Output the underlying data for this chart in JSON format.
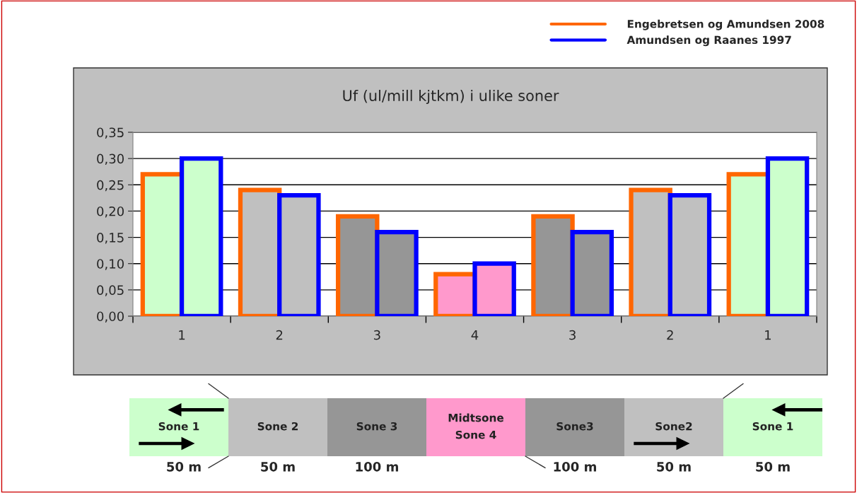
{
  "chart_data": [
    {
      "type": "bar",
      "title": "Uf (ul/mill kjtkm) i ulike soner",
      "categories": [
        "1",
        "2",
        "3",
        "4",
        "3",
        "2",
        "1"
      ],
      "series": [
        {
          "name": "Engebretsen og Amundsen 2008",
          "color": "#ff6600",
          "colors": [
            "#ccffcc",
            "#c0c0c0",
            "#969696",
            "#ff99cc",
            "#969696",
            "#c0c0c0",
            "#ccffcc"
          ],
          "values": [
            0.27,
            0.24,
            0.19,
            0.08,
            0.19,
            0.24,
            0.27
          ]
        },
        {
          "name": "Amundsen og Raanes 1997",
          "color": "#0000ff",
          "colors": [
            "#ccffcc",
            "#c0c0c0",
            "#969696",
            "#ff99cc",
            "#969696",
            "#c0c0c0",
            "#ccffcc"
          ],
          "values": [
            0.3,
            0.23,
            0.16,
            0.1,
            0.16,
            0.23,
            0.3
          ]
        }
      ],
      "ylim": [
        0,
        0.35
      ],
      "yticks": [
        {
          "value": 0,
          "label": "0,00"
        },
        {
          "value": 0.05,
          "label": "0,05"
        },
        {
          "value": 0.1,
          "label": "0,10"
        },
        {
          "value": 0.15,
          "label": "0,15"
        },
        {
          "value": 0.2,
          "label": "0,20"
        },
        {
          "value": 0.25,
          "label": "0,25"
        },
        {
          "value": 0.3,
          "label": "0,30"
        },
        {
          "value": 0.35,
          "label": "0,35"
        }
      ],
      "grid": "y",
      "legend": "top right"
    },
    {
      "type": "other",
      "categories": [
        "Sone 1",
        "Sone 2",
        "Sone 3",
        "Midtsone\nSone 4",
        "Sone3",
        "Sone2",
        "Sone 1"
      ],
      "colors": [
        "#ccffcc",
        "#c0c0c0",
        "#969696",
        "#ff99cc",
        "#969696",
        "#c0c0c0",
        "#ccffcc"
      ],
      "annotations": [
        "50 m",
        "50 m",
        "100 m",
        "100 m",
        "50 m",
        "50 m"
      ]
    }
  ]
}
